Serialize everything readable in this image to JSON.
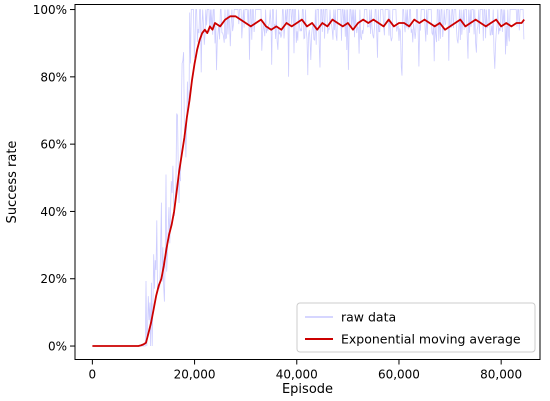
{
  "chart_data": {
    "type": "line",
    "xlabel": "Episode",
    "ylabel": "Success rate",
    "xlim": [
      -3400,
      87600
    ],
    "ylim": [
      -4,
      101.5
    ],
    "x_ticks": [
      0,
      20000,
      40000,
      60000,
      80000
    ],
    "x_tick_labels": [
      "0",
      "20,000",
      "40,000",
      "60,000",
      "80,000"
    ],
    "y_ticks": [
      0,
      20,
      40,
      60,
      80,
      100
    ],
    "y_tick_labels": [
      "0%",
      "20%",
      "40%",
      "60%",
      "80%",
      "100%"
    ],
    "legend_position": "bottom-right",
    "grid": false,
    "series": [
      {
        "name": "raw data",
        "color": "#c8c8ff",
        "style": "noisy-thin",
        "noise": {
          "low_before": 10500,
          "seed": 7
        },
        "x": [
          0,
          9000,
          10000,
          11000,
          12000,
          13000,
          14000,
          15000,
          16000,
          17000,
          18000,
          19000,
          20000,
          21000,
          22000,
          24000,
          26000,
          28000,
          30000,
          40000,
          50000,
          60000,
          70000,
          80000,
          84500
        ],
        "y": [
          0,
          0,
          0,
          5,
          15,
          25,
          30,
          40,
          48,
          60,
          73,
          83,
          90,
          94,
          95,
          96,
          97,
          97,
          96,
          96,
          96,
          96,
          96,
          96,
          96
        ]
      },
      {
        "name": "Exponential moving average",
        "color": "#cc0000",
        "style": "line",
        "x": [
          0,
          9000,
          9500,
          10000,
          10500,
          11000,
          11500,
          12000,
          12500,
          13000,
          13500,
          14000,
          14500,
          15000,
          15500,
          16000,
          16500,
          17000,
          17500,
          18000,
          18500,
          19000,
          19500,
          20000,
          20500,
          21000,
          21500,
          22000,
          22500,
          23000,
          23500,
          24000,
          25000,
          26000,
          27000,
          28000,
          29000,
          30000,
          31000,
          32000,
          33000,
          34000,
          35000,
          36000,
          37000,
          38000,
          39000,
          40000,
          41000,
          42000,
          43000,
          44000,
          45000,
          46000,
          47000,
          48000,
          49000,
          50000,
          51000,
          52000,
          53000,
          54000,
          55000,
          56000,
          57000,
          58000,
          59000,
          60000,
          61000,
          62000,
          63000,
          64000,
          65000,
          66000,
          67000,
          68000,
          69000,
          70000,
          71000,
          72000,
          73000,
          74000,
          75000,
          76000,
          77000,
          78000,
          79000,
          80000,
          81000,
          82000,
          83000,
          84000,
          84500
        ],
        "y": [
          0,
          0,
          0.2,
          0.5,
          1,
          4,
          7,
          11,
          15,
          18,
          20,
          24,
          29,
          33,
          36,
          40,
          46,
          52,
          57,
          62,
          68,
          73,
          79,
          84,
          88,
          91,
          93,
          94,
          93,
          95,
          94,
          96,
          95,
          97,
          98,
          98,
          97,
          96,
          95,
          96,
          97,
          95,
          94,
          95,
          94,
          96,
          95,
          96,
          97,
          95,
          96,
          94,
          96,
          95,
          97,
          96,
          95,
          96,
          94,
          96,
          97,
          96,
          97,
          96,
          95,
          97,
          95,
          96,
          96,
          95,
          97,
          96,
          97,
          96,
          95,
          96,
          94,
          95,
          96,
          97,
          95,
          96,
          97,
          96,
          95,
          96,
          97,
          95,
          96,
          95,
          96,
          96,
          97
        ]
      }
    ]
  }
}
